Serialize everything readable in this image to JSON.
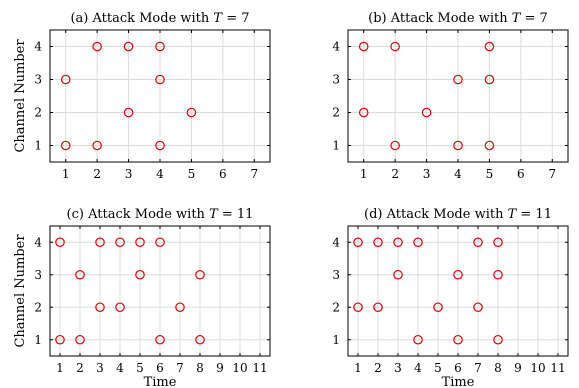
{
  "chart_data": [
    {
      "type": "scatter",
      "title": "(a) Attack Mode with T = 7",
      "title_parts": {
        "prefix": "(a) Attack Mode with ",
        "var": "T",
        "eq": " = ",
        "num": "7"
      },
      "xlabel": "",
      "ylabel": "Channel Number",
      "xlim": [
        0.5,
        7.5
      ],
      "ylim": [
        0.5,
        4.5
      ],
      "xticks": [
        "1",
        "2",
        "3",
        "4",
        "5",
        "6",
        "7"
      ],
      "yticks": [
        "1",
        "2",
        "3",
        "4"
      ],
      "grid": true,
      "marker_color": "#e00000",
      "points": [
        [
          1,
          1
        ],
        [
          1,
          3
        ],
        [
          2,
          1
        ],
        [
          2,
          4
        ],
        [
          3,
          2
        ],
        [
          3,
          4
        ],
        [
          4,
          1
        ],
        [
          4,
          3
        ],
        [
          4,
          4
        ],
        [
          5,
          2
        ]
      ]
    },
    {
      "type": "scatter",
      "title": "(b) Attack Mode with T = 7",
      "title_parts": {
        "prefix": "(b) Attack Mode with ",
        "var": "T",
        "eq": " = ",
        "num": "7"
      },
      "xlabel": "",
      "ylabel": "",
      "xlim": [
        0.5,
        7.5
      ],
      "ylim": [
        0.5,
        4.5
      ],
      "xticks": [
        "1",
        "2",
        "3",
        "4",
        "5",
        "6",
        "7"
      ],
      "yticks": [
        "1",
        "2",
        "3",
        "4"
      ],
      "grid": true,
      "marker_color": "#e00000",
      "points": [
        [
          1,
          2
        ],
        [
          1,
          4
        ],
        [
          2,
          1
        ],
        [
          2,
          4
        ],
        [
          3,
          2
        ],
        [
          4,
          1
        ],
        [
          4,
          3
        ],
        [
          5,
          1
        ],
        [
          5,
          3
        ],
        [
          5,
          4
        ]
      ]
    },
    {
      "type": "scatter",
      "title": "(c) Attack Mode with T = 11",
      "title_parts": {
        "prefix": "(c) Attack Mode with ",
        "var": "T",
        "eq": " = ",
        "num": "11"
      },
      "xlabel": "Time",
      "ylabel": "Channel Number",
      "xlim": [
        0.5,
        11.5
      ],
      "ylim": [
        0.5,
        4.5
      ],
      "xticks": [
        "1",
        "2",
        "3",
        "4",
        "5",
        "6",
        "7",
        "8",
        "9",
        "10",
        "11"
      ],
      "yticks": [
        "1",
        "2",
        "3",
        "4"
      ],
      "grid": true,
      "marker_color": "#e00000",
      "points": [
        [
          1,
          1
        ],
        [
          1,
          4
        ],
        [
          2,
          1
        ],
        [
          2,
          3
        ],
        [
          3,
          2
        ],
        [
          3,
          4
        ],
        [
          4,
          2
        ],
        [
          4,
          4
        ],
        [
          5,
          3
        ],
        [
          5,
          4
        ],
        [
          6,
          1
        ],
        [
          6,
          4
        ],
        [
          7,
          2
        ],
        [
          8,
          1
        ],
        [
          8,
          3
        ]
      ]
    },
    {
      "type": "scatter",
      "title": "(d) Attack Mode with T = 11",
      "title_parts": {
        "prefix": "(d) Attack Mode with ",
        "var": "T",
        "eq": " = ",
        "num": "11"
      },
      "xlabel": "Time",
      "ylabel": "",
      "xlim": [
        0.5,
        11.5
      ],
      "ylim": [
        0.5,
        4.5
      ],
      "xticks": [
        "1",
        "2",
        "3",
        "4",
        "5",
        "6",
        "7",
        "8",
        "9",
        "10",
        "11"
      ],
      "yticks": [
        "1",
        "2",
        "3",
        "4"
      ],
      "grid": true,
      "marker_color": "#e00000",
      "points": [
        [
          1,
          2
        ],
        [
          1,
          4
        ],
        [
          2,
          2
        ],
        [
          2,
          4
        ],
        [
          3,
          3
        ],
        [
          3,
          4
        ],
        [
          4,
          1
        ],
        [
          4,
          4
        ],
        [
          5,
          2
        ],
        [
          6,
          1
        ],
        [
          6,
          3
        ],
        [
          7,
          2
        ],
        [
          7,
          4
        ],
        [
          8,
          1
        ],
        [
          8,
          3
        ],
        [
          8,
          4
        ]
      ]
    }
  ]
}
